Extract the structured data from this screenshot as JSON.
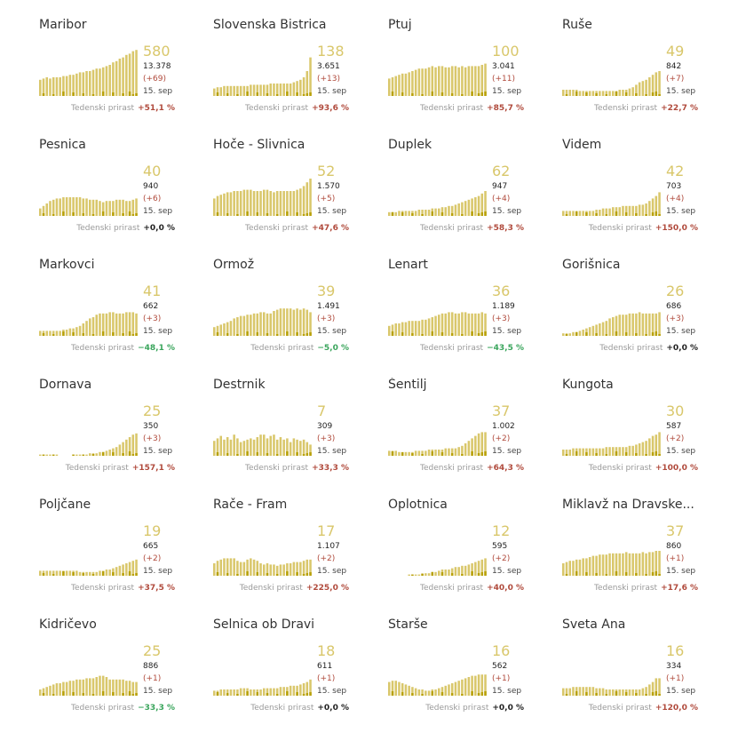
{
  "colors": {
    "cases_light": "#d9c76b",
    "cases_dark": "#b8a10a",
    "up": "#b04a3c",
    "down": "#3aa55c",
    "zero": "#222222"
  },
  "labels": {
    "growth_label": "Tedenski prirast",
    "date": "15. sep"
  },
  "chart_data": [
    {
      "type": "bar",
      "name": "Maribor",
      "active": "580",
      "total": "13.378",
      "delta": "(+69)",
      "growth": "+51,1 %",
      "trend": "up",
      "values": [
        13,
        14,
        15,
        14,
        15,
        15,
        15,
        16,
        16,
        17,
        17,
        18,
        19,
        19,
        20,
        20,
        21,
        22,
        22,
        23,
        24,
        25,
        27,
        28,
        30,
        31,
        33,
        34,
        36,
        37
      ]
    },
    {
      "type": "bar",
      "name": "Slovenska Bistrica",
      "active": "138",
      "total": "3.651",
      "delta": "(+13)",
      "growth": "+93,6 %",
      "trend": "up",
      "values": [
        6,
        7,
        7,
        8,
        8,
        8,
        8,
        8,
        8,
        8,
        8,
        9,
        9,
        9,
        9,
        9,
        9,
        10,
        10,
        10,
        10,
        10,
        10,
        10,
        11,
        12,
        13,
        15,
        20,
        31
      ]
    },
    {
      "type": "bar",
      "name": "Ptuj",
      "active": "100",
      "total": "3.041",
      "delta": "(+11)",
      "growth": "+85,7 %",
      "trend": "up",
      "values": [
        14,
        15,
        16,
        17,
        18,
        18,
        19,
        20,
        21,
        22,
        22,
        22,
        23,
        24,
        23,
        24,
        24,
        23,
        23,
        24,
        24,
        23,
        24,
        23,
        24,
        24,
        24,
        24,
        25,
        26
      ]
    },
    {
      "type": "bar",
      "name": "Ruše",
      "active": "49",
      "total": "842",
      "delta": "(+7)",
      "growth": "+22,7 %",
      "trend": "up",
      "values": [
        5,
        5,
        5,
        5,
        5,
        4,
        4,
        4,
        4,
        4,
        4,
        4,
        4,
        4,
        4,
        4,
        4,
        5,
        5,
        5,
        6,
        7,
        9,
        11,
        12,
        13,
        15,
        17,
        19,
        20
      ]
    },
    {
      "type": "bar",
      "name": "Pesnica",
      "active": "40",
      "total": "940",
      "delta": "(+6)",
      "growth": "+0,0 %",
      "trend": "zero",
      "values": [
        6,
        8,
        10,
        12,
        13,
        14,
        14,
        15,
        15,
        15,
        15,
        15,
        15,
        14,
        14,
        13,
        13,
        13,
        12,
        11,
        12,
        12,
        12,
        13,
        13,
        13,
        12,
        12,
        13,
        14
      ]
    },
    {
      "type": "bar",
      "name": "Hoče - Slivnica",
      "active": "52",
      "total": "1.570",
      "delta": "(+5)",
      "growth": "+47,6 %",
      "trend": "up",
      "values": [
        14,
        16,
        17,
        18,
        19,
        19,
        20,
        20,
        20,
        21,
        21,
        21,
        20,
        20,
        20,
        21,
        21,
        20,
        19,
        20,
        20,
        20,
        20,
        20,
        20,
        21,
        22,
        24,
        27,
        30
      ]
    },
    {
      "type": "bar",
      "name": "Duplek",
      "active": "62",
      "total": "947",
      "delta": "(+4)",
      "growth": "+58,3 %",
      "trend": "up",
      "values": [
        3,
        3,
        3,
        4,
        4,
        4,
        4,
        4,
        4,
        5,
        5,
        5,
        5,
        6,
        6,
        6,
        7,
        7,
        8,
        8,
        9,
        10,
        11,
        12,
        13,
        14,
        15,
        16,
        18,
        20
      ]
    },
    {
      "type": "bar",
      "name": "Videm",
      "active": "42",
      "total": "703",
      "delta": "(+4)",
      "growth": "+150,0 %",
      "trend": "up",
      "values": [
        4,
        4,
        4,
        4,
        4,
        4,
        4,
        4,
        4,
        4,
        5,
        5,
        6,
        6,
        6,
        7,
        7,
        7,
        8,
        8,
        8,
        8,
        8,
        9,
        9,
        10,
        12,
        14,
        16,
        19
      ]
    },
    {
      "type": "bar",
      "name": "Markovci",
      "active": "41",
      "total": "662",
      "delta": "(+3)",
      "growth": "−48,1 %",
      "trend": "down",
      "values": [
        4,
        4,
        4,
        4,
        4,
        4,
        4,
        5,
        5,
        6,
        6,
        7,
        8,
        10,
        12,
        14,
        15,
        17,
        18,
        18,
        18,
        19,
        19,
        18,
        18,
        18,
        19,
        19,
        19,
        18
      ]
    },
    {
      "type": "bar",
      "name": "Ormož",
      "active": "39",
      "total": "1.491",
      "delta": "(+3)",
      "growth": "−5,0 %",
      "trend": "down",
      "values": [
        7,
        8,
        9,
        10,
        11,
        12,
        14,
        15,
        16,
        16,
        17,
        17,
        18,
        18,
        19,
        19,
        18,
        18,
        20,
        21,
        22,
        22,
        22,
        22,
        21,
        22,
        21,
        22,
        21,
        19
      ]
    },
    {
      "type": "bar",
      "name": "Lenart",
      "active": "36",
      "total": "1.189",
      "delta": "(+3)",
      "growth": "−43,5 %",
      "trend": "down",
      "values": [
        8,
        9,
        10,
        10,
        11,
        11,
        12,
        12,
        12,
        12,
        13,
        13,
        14,
        15,
        16,
        17,
        18,
        18,
        19,
        19,
        18,
        18,
        19,
        19,
        18,
        18,
        18,
        18,
        19,
        18
      ]
    },
    {
      "type": "bar",
      "name": "Gorišnica",
      "active": "26",
      "total": "686",
      "delta": "(+3)",
      "growth": "+0,0 %",
      "trend": "zero",
      "values": [
        2,
        2,
        2,
        3,
        3,
        4,
        5,
        6,
        7,
        8,
        9,
        10,
        11,
        12,
        14,
        15,
        16,
        17,
        17,
        17,
        18,
        18,
        18,
        19,
        18,
        18,
        18,
        18,
        18,
        19
      ]
    },
    {
      "type": "bar",
      "name": "Dornava",
      "active": "25",
      "total": "350",
      "delta": "(+3)",
      "growth": "+157,1 %",
      "trend": "up",
      "values": [
        1,
        1,
        1,
        1,
        1,
        1,
        0,
        0,
        0,
        0,
        1,
        1,
        1,
        1,
        1,
        2,
        2,
        2,
        3,
        3,
        4,
        5,
        6,
        7,
        9,
        11,
        13,
        15,
        17,
        18
      ]
    },
    {
      "type": "bar",
      "name": "Destrnik",
      "active": "7",
      "total": "309",
      "delta": "(+3)",
      "growth": "+33,3 %",
      "trend": "up",
      "values": [
        12,
        14,
        16,
        13,
        15,
        13,
        17,
        14,
        11,
        12,
        13,
        14,
        13,
        15,
        17,
        17,
        14,
        16,
        17,
        13,
        15,
        13,
        14,
        11,
        14,
        13,
        12,
        13,
        11,
        9
      ]
    },
    {
      "type": "bar",
      "name": "Šentilj",
      "active": "37",
      "total": "1.002",
      "delta": "(+2)",
      "growth": "+64,3 %",
      "trend": "up",
      "values": [
        4,
        4,
        4,
        3,
        3,
        3,
        3,
        3,
        4,
        4,
        4,
        4,
        5,
        5,
        5,
        5,
        5,
        6,
        6,
        6,
        6,
        7,
        8,
        10,
        12,
        14,
        16,
        18,
        19,
        19
      ]
    },
    {
      "type": "bar",
      "name": "Kungota",
      "active": "30",
      "total": "587",
      "delta": "(+2)",
      "growth": "+100,0 %",
      "trend": "up",
      "values": [
        5,
        5,
        5,
        6,
        6,
        6,
        6,
        6,
        6,
        6,
        6,
        6,
        6,
        7,
        7,
        7,
        7,
        7,
        7,
        7,
        8,
        8,
        9,
        10,
        11,
        12,
        14,
        16,
        17,
        19
      ]
    },
    {
      "type": "bar",
      "name": "Poljčane",
      "active": "19",
      "total": "665",
      "delta": "(+2)",
      "growth": "+37,5 %",
      "trend": "up",
      "values": [
        4,
        4,
        4,
        4,
        4,
        4,
        4,
        4,
        4,
        4,
        4,
        4,
        3,
        3,
        3,
        3,
        3,
        3,
        4,
        4,
        5,
        5,
        6,
        7,
        8,
        9,
        10,
        11,
        12,
        13
      ]
    },
    {
      "type": "bar",
      "name": "Rače - Fram",
      "active": "17",
      "total": "1.107",
      "delta": "(+2)",
      "growth": "+225,0 %",
      "trend": "up",
      "values": [
        10,
        12,
        13,
        14,
        14,
        14,
        14,
        12,
        11,
        11,
        13,
        14,
        13,
        12,
        10,
        9,
        10,
        9,
        9,
        8,
        9,
        9,
        10,
        10,
        11,
        11,
        11,
        12,
        13,
        13
      ]
    },
    {
      "type": "bar",
      "name": "Oplotnica",
      "active": "12",
      "total": "595",
      "delta": "(+2)",
      "growth": "+40,0 %",
      "trend": "up",
      "values": [
        0,
        0,
        0,
        0,
        0,
        0,
        1,
        1,
        1,
        1,
        2,
        2,
        2,
        3,
        3,
        4,
        5,
        5,
        5,
        6,
        7,
        7,
        8,
        8,
        9,
        10,
        11,
        12,
        13,
        14
      ]
    },
    {
      "type": "bar",
      "name": "Miklavž na Dravske...",
      "active": "37",
      "total": "860",
      "delta": "(+1)",
      "growth": "+17,6 %",
      "trend": "up",
      "values": [
        10,
        11,
        12,
        12,
        13,
        13,
        14,
        14,
        15,
        16,
        16,
        17,
        17,
        17,
        18,
        18,
        18,
        18,
        18,
        19,
        18,
        18,
        18,
        18,
        19,
        18,
        19,
        19,
        20,
        20
      ]
    },
    {
      "type": "bar",
      "name": "Kidričevo",
      "active": "25",
      "total": "886",
      "delta": "(+1)",
      "growth": "−33,3 %",
      "trend": "down",
      "values": [
        5,
        6,
        7,
        8,
        9,
        10,
        10,
        11,
        11,
        12,
        12,
        13,
        13,
        13,
        14,
        14,
        14,
        15,
        16,
        16,
        15,
        13,
        13,
        13,
        13,
        13,
        12,
        12,
        11,
        11
      ]
    },
    {
      "type": "bar",
      "name": "Selnica ob Dravi",
      "active": "18",
      "total": "611",
      "delta": "(+1)",
      "growth": "+0,0 %",
      "trend": "zero",
      "values": [
        4,
        4,
        5,
        5,
        5,
        5,
        5,
        5,
        6,
        6,
        6,
        5,
        5,
        5,
        5,
        6,
        6,
        6,
        6,
        6,
        7,
        7,
        7,
        8,
        8,
        8,
        9,
        10,
        11,
        13
      ]
    },
    {
      "type": "bar",
      "name": "Starše",
      "active": "16",
      "total": "562",
      "delta": "(+1)",
      "growth": "+0,0 %",
      "trend": "zero",
      "values": [
        11,
        12,
        12,
        11,
        10,
        9,
        8,
        7,
        6,
        5,
        5,
        4,
        4,
        5,
        5,
        6,
        7,
        8,
        9,
        10,
        11,
        12,
        13,
        14,
        15,
        16,
        16,
        17,
        17,
        17
      ]
    },
    {
      "type": "bar",
      "name": "Sveta Ana",
      "active": "16",
      "total": "334",
      "delta": "(+1)",
      "growth": "+120,0 %",
      "trend": "up",
      "values": [
        6,
        6,
        6,
        7,
        7,
        7,
        7,
        7,
        7,
        7,
        6,
        6,
        6,
        5,
        5,
        5,
        5,
        5,
        5,
        5,
        5,
        5,
        5,
        5,
        6,
        7,
        9,
        11,
        14,
        14
      ]
    }
  ]
}
